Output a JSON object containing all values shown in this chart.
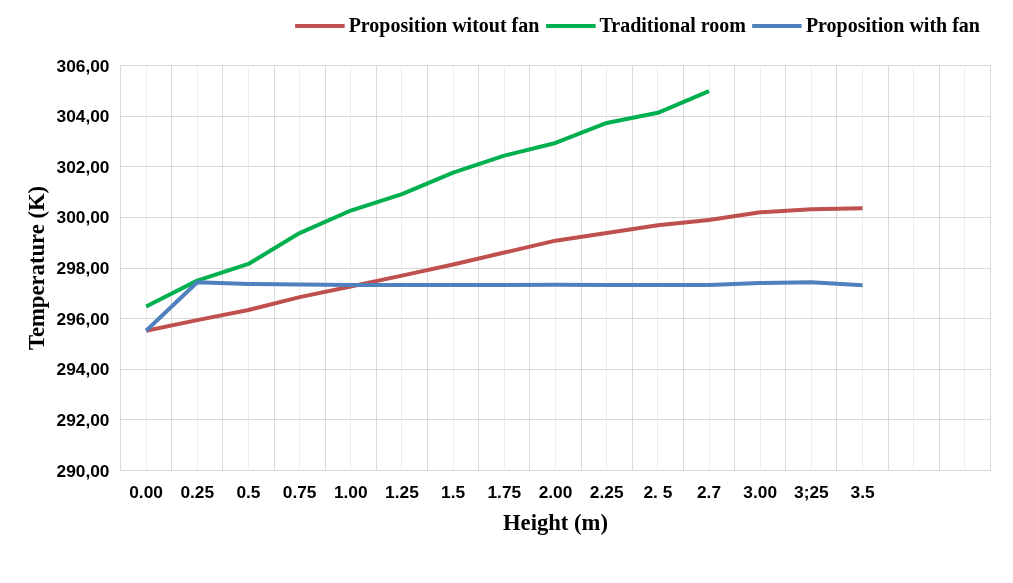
{
  "chart_data": {
    "type": "line",
    "xlabel": "Height (m)",
    "ylabel": "Temperature (K)",
    "categories": [
      "0.00",
      "0.25",
      "0.5",
      "0.75",
      "1.00",
      "1.25",
      "1.5",
      "1.75",
      "2.00",
      "2.25",
      "2. 5",
      "2.7",
      "3.00",
      "3;25",
      "3.5",
      null,
      null
    ],
    "series": [
      {
        "name": "Proposition witout fan",
        "color": "#c0504d",
        "values": [
          295.52,
          295.94,
          296.34,
          296.85,
          297.27,
          297.7,
          298.14,
          298.61,
          299.08,
          299.38,
          299.69,
          299.9,
          300.2,
          300.32,
          300.36,
          null,
          null
        ]
      },
      {
        "name": "Traditional room",
        "color": "#00b050",
        "values": [
          296.48,
          297.5,
          298.16,
          299.38,
          300.27,
          300.92,
          301.77,
          302.44,
          302.94,
          303.73,
          304.13,
          304.99,
          null,
          null,
          null,
          null,
          null
        ]
      },
      {
        "name": "Proposition with fan",
        "color": "#4f81bd",
        "values": [
          295.52,
          297.44,
          297.37,
          297.35,
          297.33,
          297.33,
          297.33,
          297.33,
          297.34,
          297.33,
          297.33,
          297.33,
          297.41,
          297.44,
          297.32,
          null,
          null
        ]
      }
    ],
    "ylim": [
      290,
      306
    ],
    "yticks": [
      {
        "value": 290,
        "label": "290,00"
      },
      {
        "value": 292,
        "label": "292,00"
      },
      {
        "value": 294,
        "label": "294,00"
      },
      {
        "value": 296,
        "label": "296,00"
      },
      {
        "value": 298,
        "label": "298,00"
      },
      {
        "value": 300,
        "label": "300,00"
      },
      {
        "value": 302,
        "label": "302,00"
      },
      {
        "value": 304,
        "label": "304,00"
      },
      {
        "value": 306,
        "label": "306,00"
      }
    ],
    "grid": true,
    "legend": "top",
    "marker": "none",
    "line_style": "solid"
  }
}
